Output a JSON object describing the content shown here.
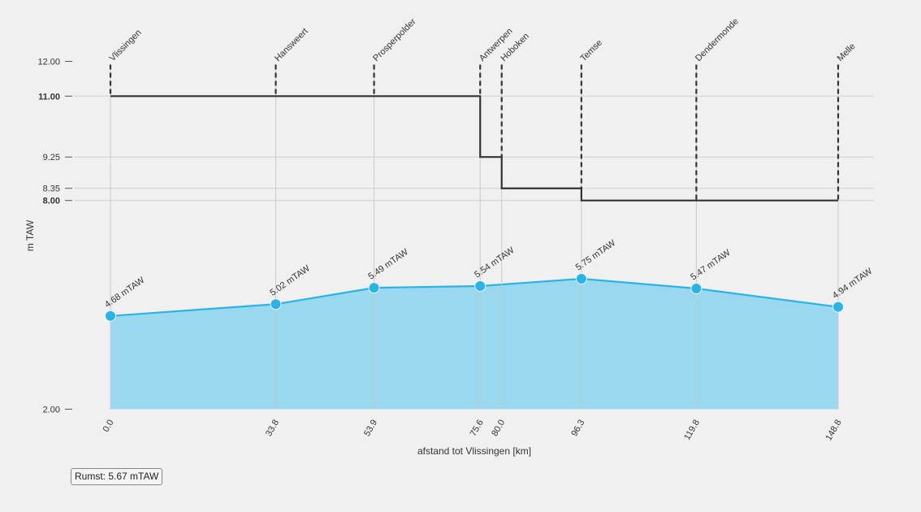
{
  "chart_data": {
    "type": "line",
    "xlabel": "afstand tot Vlissingen [km]",
    "ylabel": "m TAW",
    "ylim": [
      2.0,
      12.0
    ],
    "yticks": [
      {
        "value": 12.0,
        "label": "12.00",
        "bold": false
      },
      {
        "value": 11.0,
        "label": "11.00",
        "bold": true
      },
      {
        "value": 9.25,
        "label": "9.25",
        "bold": false
      },
      {
        "value": 8.35,
        "label": "8.35",
        "bold": false
      },
      {
        "value": 8.0,
        "label": "8.00",
        "bold": true
      },
      {
        "value": 2.0,
        "label": "2.00",
        "bold": false
      }
    ],
    "grid_y": [
      11.0,
      9.25,
      8.35,
      8.0
    ],
    "stations": [
      {
        "name": "Vlissingen",
        "km": 0.0,
        "km_label": "0.0"
      },
      {
        "name": "Hansweert",
        "km": 33.8,
        "km_label": "33.8"
      },
      {
        "name": "Prosperpolder",
        "km": 53.9,
        "km_label": "53.9"
      },
      {
        "name": "Antwerpen",
        "km": 75.6,
        "km_label": "75.6"
      },
      {
        "name": "Hoboken",
        "km": 80.0,
        "km_label": "80.0"
      },
      {
        "name": "Temse",
        "km": 96.3,
        "km_label": "96.3"
      },
      {
        "name": "Dendermonde",
        "km": 119.8,
        "km_label": "119.8"
      },
      {
        "name": "Melle",
        "km": 148.8,
        "km_label": "148.8"
      }
    ],
    "dike_profile": {
      "x": [
        0.0,
        75.6,
        75.6,
        80.0,
        80.0,
        96.3,
        96.3,
        148.8
      ],
      "y": [
        11.0,
        11.0,
        9.25,
        9.25,
        8.35,
        8.35,
        8.0,
        8.0
      ]
    },
    "water_level": {
      "x": [
        0.0,
        33.8,
        53.9,
        75.6,
        96.3,
        119.8,
        148.8
      ],
      "y": [
        4.68,
        5.02,
        5.49,
        5.54,
        5.75,
        5.47,
        4.94
      ],
      "labels": [
        "4.68 mTAW",
        "5.02 mTAW",
        "5.49 mTAW",
        "5.54 mTAW",
        "5.75 mTAW",
        "5.47 mTAW",
        "4.94 mTAW"
      ],
      "line_color": "#2ab4e6",
      "fill_color": "#9ad8f0"
    },
    "dike_color": "#333333",
    "grid": true
  },
  "legend": {
    "label": "Rumst: 5.67 mTAW"
  }
}
